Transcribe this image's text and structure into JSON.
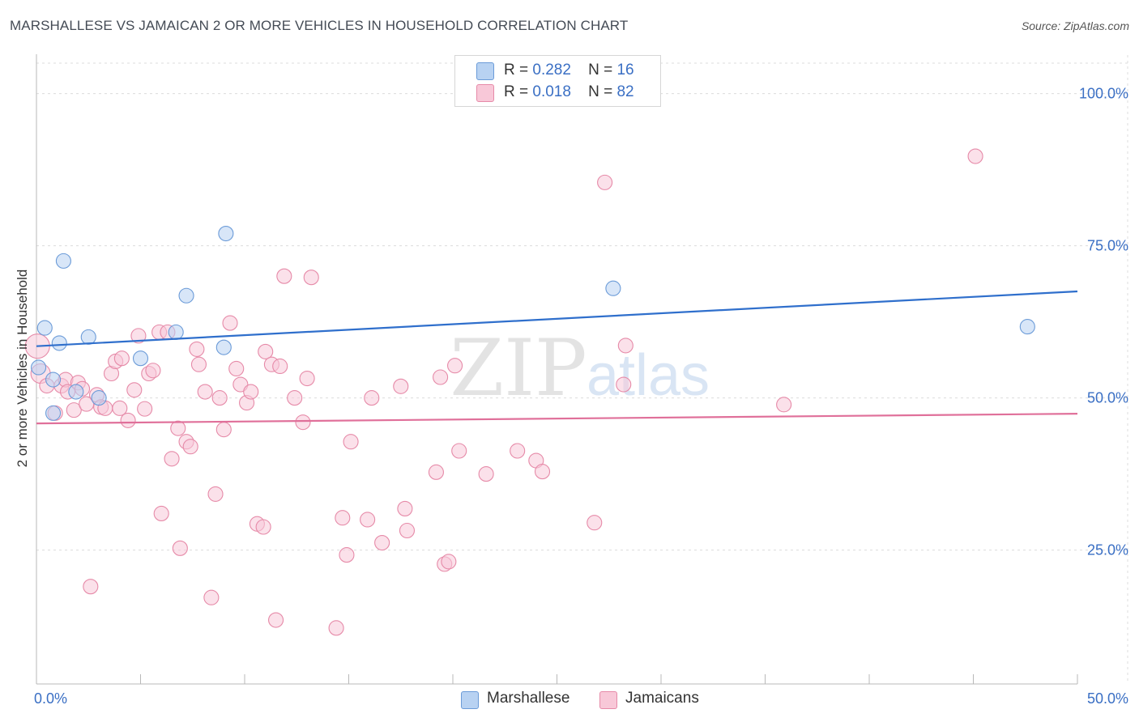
{
  "header": {
    "title": "MARSHALLESE VS JAMAICAN 2 OR MORE VEHICLES IN HOUSEHOLD CORRELATION CHART",
    "source": "Source: ZipAtlas.com"
  },
  "legend": {
    "marshallese": {
      "r_label": "R =",
      "r_value": "0.282",
      "n_label": "N =",
      "n_value": "16"
    },
    "jamaicans": {
      "r_label": "R =",
      "r_value": "0.018",
      "n_label": "N =",
      "n_value": "82"
    }
  },
  "bottom_legend": {
    "series1": "Marshallese",
    "series2": "Jamaicans"
  },
  "watermark": {
    "zip": "ZIP",
    "atlas": "atlas"
  },
  "colors": {
    "blue_fill": "#b8d2f2",
    "blue_stroke": "#6b9bd8",
    "blue_line": "#2f6fcc",
    "pink_fill": "#f8c8d8",
    "pink_stroke": "#e68aa8",
    "pink_line": "#e0709a",
    "axis_text": "#3a6fc4",
    "grid": "#dcdcdc"
  },
  "chart_data": {
    "type": "scatter",
    "title": "MARSHALLESE VS JAMAICAN 2 OR MORE VEHICLES IN HOUSEHOLD CORRELATION CHART",
    "xlabel": "",
    "ylabel": "2 or more Vehicles in Household",
    "xlim": [
      0,
      50
    ],
    "ylim": [
      3,
      105
    ],
    "x_tick_labels": [
      {
        "value": 0,
        "label": "0.0%"
      },
      {
        "value": 50,
        "label": "50.0%"
      }
    ],
    "y_tick_labels": [
      {
        "value": 100,
        "label": "100.0%"
      },
      {
        "value": 75,
        "label": "75.0%"
      },
      {
        "value": 50,
        "label": "50.0%"
      },
      {
        "value": 25,
        "label": "25.0%"
      }
    ],
    "y_grid": [
      100,
      75,
      50,
      25
    ],
    "x_minor_ticks": [
      5,
      10,
      15,
      20,
      25,
      30,
      35,
      40,
      45
    ],
    "series": [
      {
        "name": "Marshallese",
        "r": 0.282,
        "n": 16,
        "trend": {
          "x0": 0,
          "y0": 58.5,
          "x1": 50,
          "y1": 67.5
        },
        "points": [
          [
            0.1,
            55,
            9
          ],
          [
            0.4,
            61.5,
            9
          ],
          [
            0.8,
            53,
            9
          ],
          [
            0.8,
            47.5,
            9
          ],
          [
            1.1,
            59,
            9
          ],
          [
            1.3,
            72.5,
            9
          ],
          [
            1.9,
            51,
            9
          ],
          [
            2.5,
            60,
            9
          ],
          [
            3.0,
            50,
            9
          ],
          [
            5.0,
            56.5,
            9
          ],
          [
            7.2,
            66.8,
            9
          ],
          [
            6.7,
            60.8,
            9
          ],
          [
            9.1,
            77,
            9
          ],
          [
            9.0,
            58.3,
            9
          ],
          [
            27.7,
            68,
            9
          ],
          [
            47.6,
            61.7,
            9
          ]
        ]
      },
      {
        "name": "Jamaicans",
        "r": 0.018,
        "n": 82,
        "trend": {
          "x0": 0,
          "y0": 45.8,
          "x1": 50,
          "y1": 47.4
        },
        "points": [
          [
            0.05,
            58.5,
            15
          ],
          [
            0.2,
            54,
            12
          ],
          [
            0.5,
            52,
            9
          ],
          [
            0.9,
            47.5,
            9
          ],
          [
            1.2,
            52,
            9
          ],
          [
            1.4,
            53,
            9
          ],
          [
            1.5,
            51,
            9
          ],
          [
            1.8,
            48,
            9
          ],
          [
            2.0,
            52.5,
            9
          ],
          [
            2.2,
            51.5,
            9
          ],
          [
            2.4,
            49,
            9
          ],
          [
            2.6,
            19,
            9
          ],
          [
            2.9,
            50.5,
            9
          ],
          [
            3.1,
            48.5,
            9
          ],
          [
            3.3,
            48.3,
            9
          ],
          [
            3.6,
            54,
            9
          ],
          [
            3.8,
            56,
            9
          ],
          [
            4.1,
            56.5,
            9
          ],
          [
            4.0,
            48.3,
            9
          ],
          [
            4.4,
            46.3,
            9
          ],
          [
            4.7,
            51.3,
            9
          ],
          [
            4.9,
            60.2,
            9
          ],
          [
            5.2,
            48.2,
            9
          ],
          [
            5.4,
            54,
            9
          ],
          [
            5.6,
            54.5,
            9
          ],
          [
            5.9,
            60.8,
            9
          ],
          [
            6.0,
            31,
            9
          ],
          [
            6.3,
            60.8,
            9
          ],
          [
            6.5,
            40,
            9
          ],
          [
            6.8,
            45,
            9
          ],
          [
            6.9,
            25.3,
            9
          ],
          [
            7.2,
            42.8,
            9
          ],
          [
            7.4,
            42,
            9
          ],
          [
            7.7,
            58,
            9
          ],
          [
            7.8,
            55.5,
            9
          ],
          [
            8.1,
            51,
            9
          ],
          [
            8.4,
            17.2,
            9
          ],
          [
            8.6,
            34.2,
            9
          ],
          [
            8.8,
            50,
            9
          ],
          [
            9.0,
            44.8,
            9
          ],
          [
            9.3,
            62.3,
            9
          ],
          [
            9.6,
            54.8,
            9
          ],
          [
            9.8,
            52.2,
            9
          ],
          [
            10.1,
            49.2,
            9
          ],
          [
            10.3,
            51,
            9
          ],
          [
            10.6,
            29.3,
            9
          ],
          [
            10.9,
            28.8,
            9
          ],
          [
            11.0,
            57.6,
            9
          ],
          [
            11.3,
            55.5,
            9
          ],
          [
            11.5,
            13.5,
            9
          ],
          [
            11.7,
            55.2,
            9
          ],
          [
            11.9,
            70,
            9
          ],
          [
            12.4,
            50,
            9
          ],
          [
            12.8,
            46,
            9
          ],
          [
            13.0,
            53.2,
            9
          ],
          [
            13.2,
            69.8,
            9
          ],
          [
            14.4,
            12.2,
            9
          ],
          [
            14.7,
            30.3,
            9
          ],
          [
            14.9,
            24.2,
            9
          ],
          [
            15.1,
            42.8,
            9
          ],
          [
            15.9,
            30,
            9
          ],
          [
            16.1,
            50,
            9
          ],
          [
            16.6,
            26.2,
            9
          ],
          [
            17.5,
            51.9,
            9
          ],
          [
            17.7,
            31.8,
            9
          ],
          [
            17.8,
            28.2,
            9
          ],
          [
            19.2,
            37.8,
            9
          ],
          [
            19.4,
            53.4,
            9
          ],
          [
            19.6,
            22.7,
            9
          ],
          [
            19.8,
            23.1,
            9
          ],
          [
            20.1,
            55.3,
            9
          ],
          [
            20.3,
            41.3,
            9
          ],
          [
            21.6,
            37.5,
            9
          ],
          [
            23.1,
            41.3,
            9
          ],
          [
            24.0,
            39.7,
            9
          ],
          [
            24.3,
            37.9,
            9
          ],
          [
            26.8,
            29.5,
            9
          ],
          [
            27.3,
            85.4,
            9
          ],
          [
            28.2,
            52.2,
            9
          ],
          [
            28.3,
            58.6,
            9
          ],
          [
            35.9,
            48.9,
            9
          ],
          [
            45.1,
            89.7,
            9
          ]
        ]
      }
    ]
  }
}
